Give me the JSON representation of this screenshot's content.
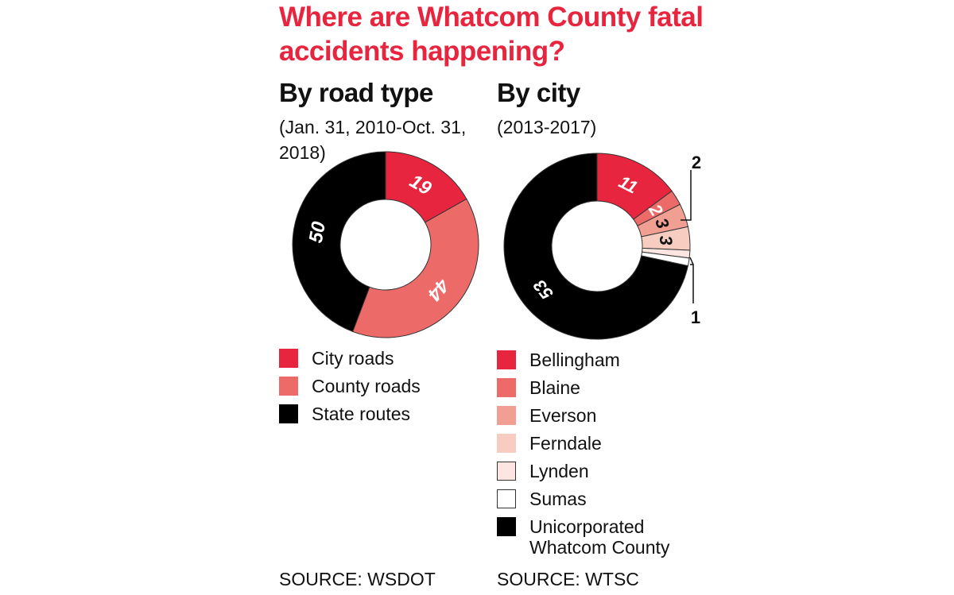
{
  "title": "Where are Whatcom County fatal accidents happening?",
  "colors": {
    "title": "#e8253f",
    "palette": [
      "#e8253f",
      "#ec6b69",
      "#f19e93",
      "#f8cdc1",
      "#fde6e1",
      "#ffffff",
      "#000000"
    ]
  },
  "chart_data": [
    {
      "type": "pie",
      "title": "By road type",
      "subtitle": "(Jan. 31, 2010-Oct. 31, 2018)",
      "categories": [
        "City roads",
        "County roads",
        "State routes"
      ],
      "values": [
        19,
        44,
        50
      ],
      "data_labels": [
        "19",
        "44",
        "50"
      ],
      "colors": [
        "#e8253f",
        "#ec6b69",
        "#000000"
      ],
      "source": "SOURCE: WSDOT"
    },
    {
      "type": "pie",
      "title": "By city",
      "subtitle": "(2013-2017)",
      "categories": [
        "Bellingham",
        "Blaine",
        "Everson",
        "Ferndale",
        "Lynden",
        "Sumas",
        "Unicorporated Whatcom County"
      ],
      "values": [
        11,
        2,
        3,
        3,
        1,
        1,
        53
      ],
      "data_labels": [
        "11",
        "2",
        "3",
        "3",
        "1",
        "1",
        "53"
      ],
      "colors": [
        "#e8253f",
        "#ec6b69",
        "#f19e93",
        "#f8cdc1",
        "#fde6e1",
        "#ffffff",
        "#000000"
      ],
      "source": "SOURCE: WTSC"
    }
  ]
}
